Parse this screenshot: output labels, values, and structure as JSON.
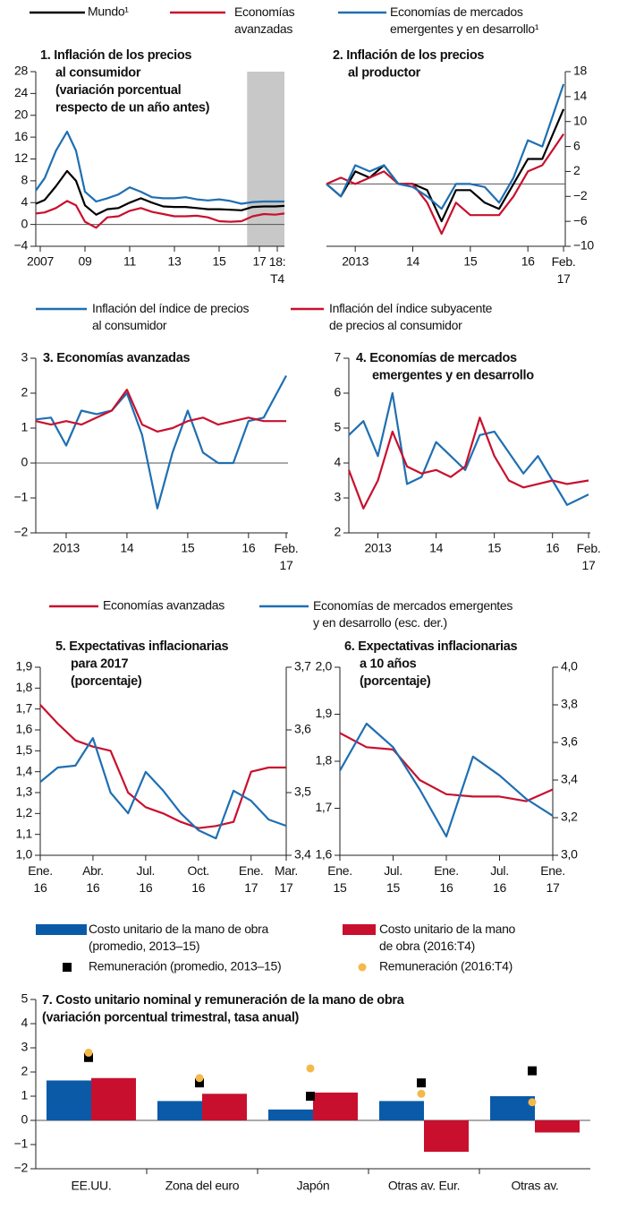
{
  "chart_data": [
    {
      "type": "line",
      "title": "1. Inflación de los precios\nal consumidor\n(variación porcentual\nrespecto de un año antes)",
      "x": [
        2006.8,
        2007.2,
        2007.7,
        2008.2,
        2008.6,
        2009.0,
        2009.5,
        2010.0,
        2010.5,
        2011.0,
        2011.5,
        2012.0,
        2012.5,
        2013.0,
        2013.5,
        2014.0,
        2014.5,
        2015.0,
        2015.5,
        2016.0,
        2016.5,
        2017.0,
        2017.5,
        2017.92
      ],
      "xlim": [
        2006.8,
        2017.92
      ],
      "xticks": [
        {
          "value": 2007,
          "label": "2007"
        },
        {
          "value": 2009,
          "label": "09"
        },
        {
          "value": 2011,
          "label": "11"
        },
        {
          "value": 2013,
          "label": "13"
        },
        {
          "value": 2015,
          "label": "15"
        },
        {
          "value": 2016.8,
          "label": "17"
        },
        {
          "value": 2017.6,
          "label": "18:\nT4"
        }
      ],
      "ylim": [
        -4,
        28
      ],
      "yticks": [
        {
          "value": -4,
          "label": "−4"
        },
        0,
        4,
        8,
        12,
        16,
        20,
        24,
        28
      ],
      "shade": [
        2016.25,
        2017.92
      ],
      "shade_color": "#c8c8c8",
      "series": [
        {
          "name": "Mundo¹",
          "color": "#000000",
          "values": [
            3.8,
            4.5,
            7,
            9.8,
            8,
            3.5,
            1.8,
            2.8,
            3,
            4,
            4.8,
            4,
            3.3,
            3.2,
            3.2,
            3,
            2.8,
            2.8,
            2.7,
            2.6,
            3.2,
            3.3,
            3.3,
            3.4
          ]
        },
        {
          "name": "Economías\navanzadas",
          "color": "#c8102e",
          "values": [
            2,
            2.2,
            3,
            4.3,
            3.5,
            0.5,
            -0.6,
            1.3,
            1.5,
            2.5,
            3,
            2.3,
            1.9,
            1.5,
            1.5,
            1.6,
            1.3,
            0.6,
            0.5,
            0.6,
            1.5,
            1.9,
            1.8,
            2.0
          ]
        },
        {
          "name": "Economías de mercados\nemergentes y en desarrollo¹",
          "color": "#1f6fb2",
          "values": [
            6.2,
            8.5,
            13.5,
            17,
            13.5,
            6,
            4.2,
            4.8,
            5.5,
            6.8,
            6,
            5,
            4.8,
            4.8,
            5,
            4.6,
            4.4,
            4.6,
            4.3,
            3.8,
            4.1,
            4.2,
            4.2,
            4.2
          ]
        }
      ]
    },
    {
      "type": "line",
      "title": "2. Inflación de los precios\nal productor",
      "x": [
        2013.0,
        2013.25,
        2013.5,
        2013.75,
        2014.0,
        2014.25,
        2014.5,
        2014.75,
        2015.0,
        2015.25,
        2015.5,
        2015.75,
        2016.0,
        2016.25,
        2016.5,
        2016.75,
        2017.12
      ],
      "xlim": [
        2013.0,
        2017.15
      ],
      "xticks": [
        {
          "value": 2013.5,
          "label": "2013"
        },
        {
          "value": 2014.5,
          "label": "14"
        },
        {
          "value": 2015.5,
          "label": "15"
        },
        {
          "value": 2016.5,
          "label": "16"
        },
        {
          "value": 2017.12,
          "label": "Feb.\n17"
        }
      ],
      "ylim": [
        -10,
        18
      ],
      "yticks": [
        {
          "value": -10,
          "label": "−10"
        },
        {
          "value": -6,
          "label": "−6"
        },
        {
          "value": -2,
          "label": "−2"
        },
        2,
        6,
        10,
        14,
        18
      ],
      "series": [
        {
          "color": "#000000",
          "values": [
            0,
            -2,
            2,
            1,
            3,
            0,
            0,
            -1,
            -6,
            -1,
            -1,
            -3,
            -4,
            0,
            4,
            4,
            12
          ]
        },
        {
          "color": "#c8102e",
          "values": [
            0,
            1,
            0,
            1,
            2,
            0,
            0,
            -3,
            -8,
            -3,
            -5,
            -5,
            -5,
            -2,
            2,
            3,
            8
          ]
        },
        {
          "color": "#1f6fb2",
          "values": [
            0,
            -2,
            3,
            2,
            3,
            0,
            -0.5,
            -2,
            -4,
            0,
            0,
            -0.5,
            -3,
            1,
            7,
            6,
            16
          ]
        }
      ]
    },
    {
      "type": "line",
      "title": "3. Economías avanzadas",
      "x": [
        2013.0,
        2013.25,
        2013.5,
        2013.75,
        2014.0,
        2014.25,
        2014.5,
        2014.75,
        2015.0,
        2015.25,
        2015.5,
        2015.75,
        2016.0,
        2016.25,
        2016.5,
        2016.75,
        2017.12
      ],
      "xlim": [
        2013.0,
        2017.15
      ],
      "xticks": [
        {
          "value": 2013.5,
          "label": "2013"
        },
        {
          "value": 2014.5,
          "label": "14"
        },
        {
          "value": 2015.5,
          "label": "15"
        },
        {
          "value": 2016.5,
          "label": "16"
        },
        {
          "value": 2017.12,
          "label": "Feb.\n17"
        }
      ],
      "ylim": [
        -2,
        3
      ],
      "yticks": [
        {
          "value": -2,
          "label": "−2"
        },
        {
          "value": -1,
          "label": "−1"
        },
        0,
        1,
        2,
        3
      ],
      "series": [
        {
          "name": "Inflación del índice de precios\nal consumidor",
          "color": "#1f6fb2",
          "values": [
            1.25,
            1.3,
            0.5,
            1.5,
            1.4,
            1.5,
            2.0,
            0.8,
            -1.3,
            0.3,
            1.5,
            0.3,
            0.0,
            0.0,
            1.2,
            1.3,
            2.5
          ]
        },
        {
          "name": "Inflación del índice subyacente\nde precios al consumidor",
          "color": "#c8102e",
          "values": [
            1.2,
            1.1,
            1.2,
            1.1,
            1.3,
            1.5,
            2.1,
            1.1,
            0.9,
            1.0,
            1.2,
            1.3,
            1.1,
            1.2,
            1.3,
            1.2,
            1.2
          ]
        }
      ]
    },
    {
      "type": "line",
      "title": "4. Economías de mercados\nemergentes y en desarrollo",
      "x": [
        2013.0,
        2013.25,
        2013.5,
        2013.75,
        2014.0,
        2014.25,
        2014.5,
        2014.75,
        2015.0,
        2015.25,
        2015.5,
        2015.75,
        2016.0,
        2016.25,
        2016.5,
        2016.75,
        2017.12
      ],
      "xlim": [
        2013.0,
        2017.15
      ],
      "xticks": [
        {
          "value": 2013.5,
          "label": "2013"
        },
        {
          "value": 2014.5,
          "label": "14"
        },
        {
          "value": 2015.5,
          "label": "15"
        },
        {
          "value": 2016.5,
          "label": "16"
        },
        {
          "value": 2017.12,
          "label": "Feb.\n17"
        }
      ],
      "ylim": [
        2,
        7
      ],
      "yticks": [
        2,
        3,
        4,
        5,
        6,
        7
      ],
      "series": [
        {
          "color": "#1f6fb2",
          "values": [
            4.8,
            5.2,
            4.2,
            6.0,
            3.4,
            3.6,
            4.6,
            4.2,
            3.8,
            4.8,
            4.9,
            4.3,
            3.7,
            4.2,
            3.5,
            2.8,
            3.1
          ]
        },
        {
          "color": "#c8102e",
          "values": [
            3.8,
            2.7,
            3.5,
            4.9,
            3.9,
            3.7,
            3.8,
            3.6,
            3.9,
            5.3,
            4.2,
            3.5,
            3.3,
            3.4,
            3.5,
            3.4,
            3.5
          ]
        }
      ]
    },
    {
      "type": "line",
      "title": "5. Expectativas inflacionarias\npara 2017\n(porcentaje)",
      "categories": [
        "Ene.\n16",
        null,
        null,
        "Abr.\n16",
        null,
        null,
        "Jul.\n16",
        null,
        null,
        "Oct.\n16",
        null,
        null,
        "Ene.\n17",
        null,
        "Mar.\n17"
      ],
      "ylim": [
        1.0,
        1.9
      ],
      "yticks": [
        {
          "value": 1.0,
          "label": "1,0"
        },
        {
          "value": 1.1,
          "label": "1,1"
        },
        {
          "value": 1.2,
          "label": "1,2"
        },
        {
          "value": 1.3,
          "label": "1,3"
        },
        {
          "value": 1.4,
          "label": "1,4"
        },
        {
          "value": 1.5,
          "label": "1,5"
        },
        {
          "value": 1.6,
          "label": "1,6"
        },
        {
          "value": 1.7,
          "label": "1,7"
        },
        {
          "value": 1.8,
          "label": "1,8"
        },
        {
          "value": 1.9,
          "label": "1,9"
        }
      ],
      "y2lim": [
        3.4,
        3.7
      ],
      "y2ticks": [
        {
          "value": 3.4,
          "label": "3,4"
        },
        {
          "value": 3.5,
          "label": "3,5"
        },
        {
          "value": 3.6,
          "label": "3,6"
        },
        {
          "value": 3.7,
          "label": "3,7"
        }
      ],
      "series": [
        {
          "name": "Economías avanzadas",
          "color": "#c8102e",
          "values": [
            1.72,
            1.63,
            1.55,
            1.52,
            1.5,
            1.3,
            1.23,
            1.2,
            1.16,
            1.13,
            1.14,
            1.16,
            1.4,
            1.42,
            1.42
          ]
        },
        {
          "name": "Economías de mercados emergentes\ny en desarrollo (esc. der.)",
          "color": "#1f6fb2",
          "axis": "y2",
          "values": [
            3.517,
            3.54,
            3.543,
            3.587,
            3.5,
            3.467,
            3.533,
            3.503,
            3.467,
            3.44,
            3.427,
            3.503,
            3.487,
            3.457,
            3.447
          ]
        }
      ]
    },
    {
      "type": "line",
      "title": "6. Expectativas inflacionarias\na 10 años\n(porcentaje)",
      "categories": [
        "Ene.\n15",
        null,
        "Jul.\n15",
        null,
        "Ene.\n16",
        null,
        "Jul.\n16",
        null,
        "Ene.\n17"
      ],
      "ylim": [
        1.6,
        2.0
      ],
      "yticks": [
        {
          "value": 1.6,
          "label": "1,6"
        },
        {
          "value": 1.7,
          "label": "1,7"
        },
        {
          "value": 1.8,
          "label": "1,8"
        },
        {
          "value": 1.9,
          "label": "1,9"
        },
        {
          "value": 2.0,
          "label": "2,0"
        }
      ],
      "y2lim": [
        3.0,
        4.0
      ],
      "y2ticks": [
        {
          "value": 3.0,
          "label": "3,0"
        },
        {
          "value": 3.2,
          "label": "3,2"
        },
        {
          "value": 3.4,
          "label": "3,4"
        },
        {
          "value": 3.6,
          "label": "3,6"
        },
        {
          "value": 3.8,
          "label": "3,8"
        },
        {
          "value": 4.0,
          "label": "4,0"
        }
      ],
      "series": [
        {
          "color": "#c8102e",
          "values": [
            1.86,
            1.83,
            1.825,
            1.76,
            1.73,
            1.725,
            1.725,
            1.715,
            1.74
          ]
        },
        {
          "color": "#1f6fb2",
          "axis": "y2",
          "values": [
            3.45,
            3.7,
            3.575,
            3.35,
            3.1,
            3.525,
            3.425,
            3.3,
            3.21
          ]
        }
      ]
    },
    {
      "type": "bar",
      "title": "7. Costo unitario nominal y remuneración de la mano de obra\n(variación porcentual trimestral, tasa anual)",
      "categories": [
        "EE.UU.",
        "Zona del euro",
        "Japón",
        "Otras av. Eur.",
        "Otras av."
      ],
      "ylim": [
        -2,
        5
      ],
      "yticks": [
        {
          "value": -2,
          "label": "−2"
        },
        {
          "value": -1,
          "label": "−1"
        },
        0,
        1,
        2,
        3,
        4,
        5
      ],
      "series": [
        {
          "name": "Costo unitario de la mano de obra\n(promedio, 2013–15)",
          "color": "#0b5aa8",
          "mark": "bar",
          "values": [
            1.65,
            0.8,
            0.45,
            0.8,
            1.0
          ]
        },
        {
          "name": "Costo unitario de la mano\nde obra (2016:T4)",
          "color": "#c8102e",
          "mark": "bar",
          "values": [
            1.75,
            1.1,
            1.15,
            -1.3,
            -0.5
          ]
        },
        {
          "name": "Remuneración (promedio, 2013–15)",
          "color": "#000000",
          "mark": "square",
          "values": [
            2.6,
            1.55,
            1.0,
            1.55,
            2.05
          ]
        },
        {
          "name": "Remuneración (2016:T4)",
          "color": "#f5b94a",
          "mark": "circle",
          "values": [
            2.8,
            1.75,
            2.15,
            1.1,
            0.75
          ]
        }
      ]
    }
  ]
}
